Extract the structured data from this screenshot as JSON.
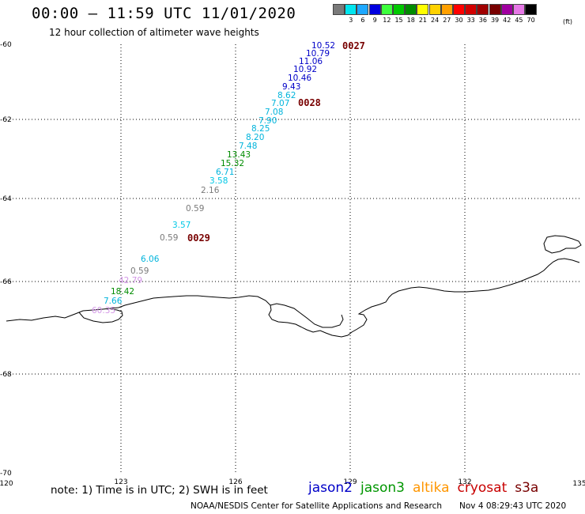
{
  "header": {
    "title": "00:00 – 11:59 UTC 11/01/2020",
    "subtitle": "12 hour collection of altimeter wave heights"
  },
  "legend": {
    "unit": "(ft)",
    "items": [
      {
        "label": "",
        "color": "#7a7a7a"
      },
      {
        "label": "3",
        "color": "#00e5ee"
      },
      {
        "label": "6",
        "color": "#1ea8ff"
      },
      {
        "label": "9",
        "color": "#0000e0"
      },
      {
        "label": "12",
        "color": "#3cff3c"
      },
      {
        "label": "15",
        "color": "#00c800"
      },
      {
        "label": "18",
        "color": "#008c00"
      },
      {
        "label": "21",
        "color": "#ffff00"
      },
      {
        "label": "24",
        "color": "#ffd200"
      },
      {
        "label": "27",
        "color": "#ffa000"
      },
      {
        "label": "30",
        "color": "#ff0000"
      },
      {
        "label": "33",
        "color": "#d20000"
      },
      {
        "label": "36",
        "color": "#a00000"
      },
      {
        "label": "39",
        "color": "#780000"
      },
      {
        "label": "42",
        "color": "#a000a0"
      },
      {
        "label": "45",
        "color": "#e678e6"
      },
      {
        "label": "70",
        "color": "#000000"
      }
    ]
  },
  "map": {
    "lon_range": [
      120,
      135
    ],
    "lat_range": [
      -70,
      -60
    ],
    "x_ticks": [
      "120",
      "123",
      "126",
      "129",
      "132",
      "135"
    ],
    "y_ticks": [
      "-60",
      "-62",
      "-64",
      "-66",
      "-68",
      "-70"
    ],
    "grid": "dotted",
    "observations": [
      {
        "value": "10.52",
        "color": "#0000c8"
      },
      {
        "value": "10.79",
        "color": "#0000c8"
      },
      {
        "value": "11.06",
        "color": "#0000c8"
      },
      {
        "value": "10.92",
        "color": "#0000c8"
      },
      {
        "value": "10.46",
        "color": "#0000c8"
      },
      {
        "value": "9.43",
        "color": "#0000c8"
      },
      {
        "value": "8.62",
        "color": "#00b4dc"
      },
      {
        "value": "7.07",
        "color": "#00b4dc"
      },
      {
        "value": "7.08",
        "color": "#00b4dc"
      },
      {
        "value": "7.90",
        "color": "#00b4dc"
      },
      {
        "value": "8.25",
        "color": "#00b4dc"
      },
      {
        "value": "8.20",
        "color": "#00b4dc"
      },
      {
        "value": "7.48",
        "color": "#00b4dc"
      },
      {
        "value": "13.43",
        "color": "#008c00"
      },
      {
        "value": "15.32",
        "color": "#008c00"
      },
      {
        "value": "6.71",
        "color": "#00b4dc"
      },
      {
        "value": "3.58",
        "color": "#00c8e6"
      },
      {
        "value": "2.16",
        "color": "#7a7a7a"
      },
      {
        "value": "0.59",
        "color": "#7a7a7a"
      },
      {
        "value": "3.57",
        "color": "#00c8e6"
      },
      {
        "value": "0.59",
        "color": "#7a7a7a"
      },
      {
        "value": "6.06",
        "color": "#00b4dc"
      },
      {
        "value": "0.59",
        "color": "#7a7a7a"
      },
      {
        "value": "42.79",
        "color": "#d296e6"
      },
      {
        "value": "18.42",
        "color": "#008c00"
      },
      {
        "value": "7.66",
        "color": "#00b4dc"
      },
      {
        "value": "60.35",
        "color": "#d296e6"
      }
    ],
    "passes": [
      {
        "label": "0027",
        "color": "#780000"
      },
      {
        "label": "0028",
        "color": "#780000"
      },
      {
        "label": "0029",
        "color": "#780000"
      }
    ]
  },
  "footer": {
    "note": "note:  1) Time is in UTC;  2) SWH is in feet",
    "satellites": [
      {
        "name": "jason2",
        "color": "#0000c8"
      },
      {
        "name": "jason3",
        "color": "#009600"
      },
      {
        "name": "altika",
        "color": "#ff9600"
      },
      {
        "name": "cryosat",
        "color": "#c80000"
      },
      {
        "name": "s3a",
        "color": "#780000"
      }
    ],
    "credit": "NOAA/NESDIS Center for Satellite Applications and Research",
    "timestamp": "Nov  4 08:29:43 UTC 2020"
  }
}
